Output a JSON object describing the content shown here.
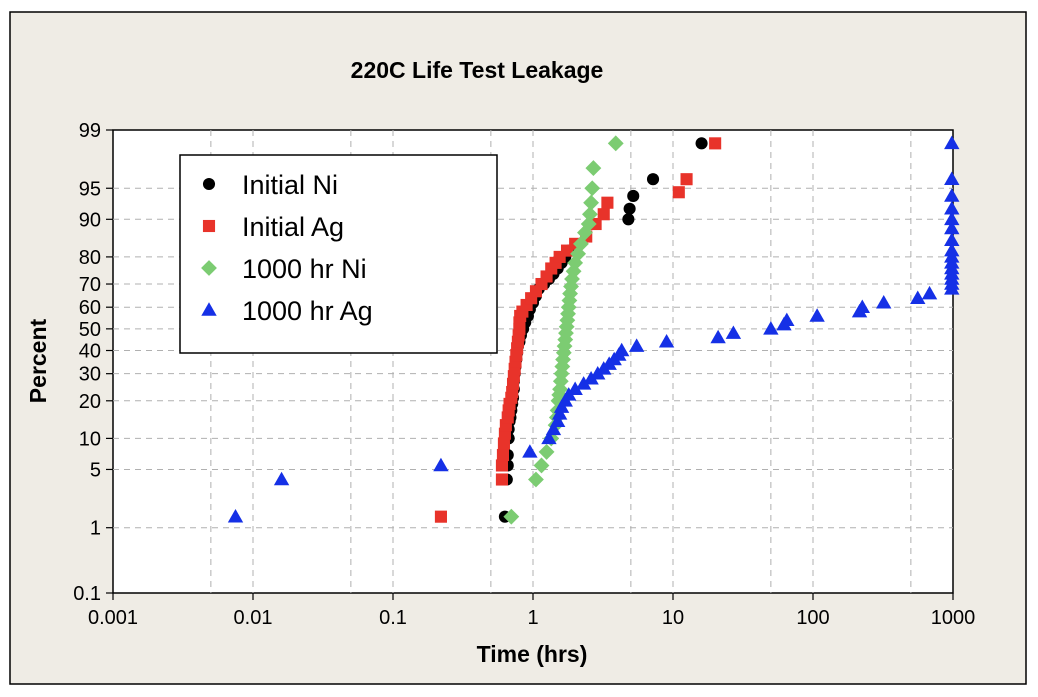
{
  "chart_data": {
    "type": "scatter",
    "title": "220C Life Test Leakage",
    "xlabel": "Time (hrs)",
    "ylabel": "Percent",
    "x_scale": "log",
    "y_scale": "normal-probability",
    "xlim": [
      0.001,
      1000
    ],
    "ylim": [
      0.1,
      99
    ],
    "x_ticks": [
      0.001,
      0.01,
      0.1,
      1,
      10,
      100,
      1000
    ],
    "x_tick_labels": [
      "0.001",
      "0.01",
      "0.1",
      "1",
      "10",
      "100",
      "1000"
    ],
    "y_ticks": [
      0.1,
      1,
      5,
      10,
      20,
      30,
      40,
      50,
      60,
      70,
      80,
      90,
      95,
      99
    ],
    "y_tick_labels": [
      "0.1",
      "1",
      "5",
      "10",
      "20",
      "30",
      "40",
      "50",
      "60",
      "70",
      "80",
      "90",
      "95",
      "99"
    ],
    "x_grid": [
      0.005,
      0.01,
      0.05,
      0.1,
      0.5,
      1,
      5,
      10,
      50,
      100,
      500
    ],
    "y_grid": [
      1,
      5,
      10,
      20,
      30,
      40,
      50,
      60,
      70,
      80,
      90,
      95
    ],
    "grid": true,
    "legend_position": "top-left",
    "colors": {
      "background": "#efece5",
      "plot_background": "#ffffff",
      "initial_ni": "#000000",
      "initial_ag": "#e8332a",
      "ni_1000": "#7ccc72",
      "ag_1000": "#1530e6"
    },
    "series": [
      {
        "name": "Initial Ni",
        "marker": "circle",
        "color": "#000000",
        "points": [
          [
            0.63,
            1.4
          ],
          [
            0.65,
            3.9
          ],
          [
            0.66,
            5.5
          ],
          [
            0.66,
            7
          ],
          [
            0.67,
            10
          ],
          [
            0.67,
            12
          ],
          [
            0.68,
            14
          ],
          [
            0.69,
            15
          ],
          [
            0.7,
            17
          ],
          [
            0.71,
            19
          ],
          [
            0.72,
            21
          ],
          [
            0.73,
            24
          ],
          [
            0.73,
            27
          ],
          [
            0.74,
            30
          ],
          [
            0.75,
            33
          ],
          [
            0.76,
            36
          ],
          [
            0.77,
            39
          ],
          [
            0.78,
            42
          ],
          [
            0.8,
            44
          ],
          [
            0.82,
            47
          ],
          [
            0.85,
            50
          ],
          [
            0.88,
            53
          ],
          [
            0.92,
            56
          ],
          [
            0.95,
            59
          ],
          [
            1.0,
            62
          ],
          [
            1.05,
            65
          ],
          [
            1.1,
            68
          ],
          [
            1.2,
            70
          ],
          [
            1.3,
            72
          ],
          [
            1.4,
            74
          ],
          [
            1.5,
            76
          ],
          [
            1.6,
            78
          ],
          [
            1.7,
            80
          ],
          [
            1.8,
            82
          ],
          [
            4.8,
            90
          ],
          [
            4.9,
            92
          ],
          [
            5.2,
            94
          ],
          [
            7.2,
            96
          ],
          [
            16,
            98.5
          ]
        ]
      },
      {
        "name": "Initial Ag",
        "marker": "square",
        "color": "#e8332a",
        "points": [
          [
            0.22,
            1.4
          ],
          [
            0.6,
            3.9
          ],
          [
            0.6,
            5.5
          ],
          [
            0.61,
            7
          ],
          [
            0.62,
            9
          ],
          [
            0.63,
            11
          ],
          [
            0.64,
            13
          ],
          [
            0.66,
            15
          ],
          [
            0.67,
            17
          ],
          [
            0.68,
            19
          ],
          [
            0.7,
            21
          ],
          [
            0.71,
            23
          ],
          [
            0.72,
            26
          ],
          [
            0.73,
            29
          ],
          [
            0.74,
            32
          ],
          [
            0.75,
            35
          ],
          [
            0.76,
            38
          ],
          [
            0.77,
            41
          ],
          [
            0.78,
            44
          ],
          [
            0.79,
            47
          ],
          [
            0.8,
            50
          ],
          [
            0.8,
            53
          ],
          [
            0.81,
            56
          ],
          [
            0.84,
            58
          ],
          [
            0.9,
            61
          ],
          [
            0.97,
            64
          ],
          [
            1.05,
            67
          ],
          [
            1.15,
            70
          ],
          [
            1.25,
            73
          ],
          [
            1.35,
            76
          ],
          [
            1.45,
            78
          ],
          [
            1.55,
            80
          ],
          [
            1.75,
            82
          ],
          [
            2.0,
            84
          ],
          [
            2.4,
            86
          ],
          [
            2.8,
            89
          ],
          [
            3.2,
            91
          ],
          [
            3.4,
            93
          ],
          [
            11,
            94.5
          ],
          [
            12.5,
            96
          ],
          [
            20,
            98.5
          ]
        ]
      },
      {
        "name": "1000 hr Ni",
        "marker": "diamond",
        "color": "#7ccc72",
        "points": [
          [
            0.7,
            1.4
          ],
          [
            1.05,
            3.9
          ],
          [
            1.15,
            5.5
          ],
          [
            1.25,
            7.5
          ],
          [
            1.35,
            10
          ],
          [
            1.45,
            13
          ],
          [
            1.48,
            15
          ],
          [
            1.5,
            17
          ],
          [
            1.52,
            20
          ],
          [
            1.54,
            22
          ],
          [
            1.56,
            24
          ],
          [
            1.58,
            27
          ],
          [
            1.6,
            30
          ],
          [
            1.62,
            33
          ],
          [
            1.64,
            36
          ],
          [
            1.66,
            39
          ],
          [
            1.68,
            42
          ],
          [
            1.7,
            45
          ],
          [
            1.72,
            48
          ],
          [
            1.74,
            51
          ],
          [
            1.76,
            54
          ],
          [
            1.78,
            57
          ],
          [
            1.8,
            60
          ],
          [
            1.82,
            63
          ],
          [
            1.84,
            66
          ],
          [
            1.87,
            69
          ],
          [
            1.9,
            72
          ],
          [
            1.95,
            75
          ],
          [
            2.0,
            78
          ],
          [
            2.1,
            81
          ],
          [
            2.2,
            84
          ],
          [
            2.35,
            87
          ],
          [
            2.5,
            89
          ],
          [
            2.55,
            91
          ],
          [
            2.6,
            93
          ],
          [
            2.65,
            95
          ],
          [
            2.7,
            97
          ],
          [
            3.9,
            98.5
          ]
        ]
      },
      {
        "name": "1000 hr Ag",
        "marker": "triangle",
        "color": "#1530e6",
        "points": [
          [
            0.0075,
            1.4
          ],
          [
            0.016,
            3.9
          ],
          [
            0.22,
            5.5
          ],
          [
            0.95,
            7.5
          ],
          [
            1.3,
            10
          ],
          [
            1.4,
            12
          ],
          [
            1.5,
            14
          ],
          [
            1.55,
            16
          ],
          [
            1.6,
            18
          ],
          [
            1.7,
            20
          ],
          [
            1.8,
            22
          ],
          [
            2.0,
            24
          ],
          [
            2.3,
            26
          ],
          [
            2.6,
            28
          ],
          [
            2.9,
            30
          ],
          [
            3.2,
            32
          ],
          [
            3.5,
            34
          ],
          [
            3.8,
            36
          ],
          [
            4.1,
            38
          ],
          [
            4.3,
            40
          ],
          [
            5.5,
            42
          ],
          [
            9,
            44
          ],
          [
            21,
            46
          ],
          [
            27,
            48
          ],
          [
            50,
            50
          ],
          [
            62,
            52
          ],
          [
            65,
            54
          ],
          [
            107,
            56
          ],
          [
            215,
            58
          ],
          [
            225,
            60
          ],
          [
            320,
            62
          ],
          [
            560,
            64
          ],
          [
            680,
            66
          ],
          [
            980,
            68
          ],
          [
            980,
            70
          ],
          [
            980,
            72
          ],
          [
            980,
            74
          ],
          [
            980,
            76
          ],
          [
            980,
            78
          ],
          [
            980,
            80
          ],
          [
            980,
            82
          ],
          [
            980,
            85
          ],
          [
            980,
            88
          ],
          [
            980,
            90
          ],
          [
            980,
            92
          ],
          [
            980,
            94
          ],
          [
            980,
            96
          ],
          [
            980,
            98.5
          ]
        ]
      }
    ]
  }
}
